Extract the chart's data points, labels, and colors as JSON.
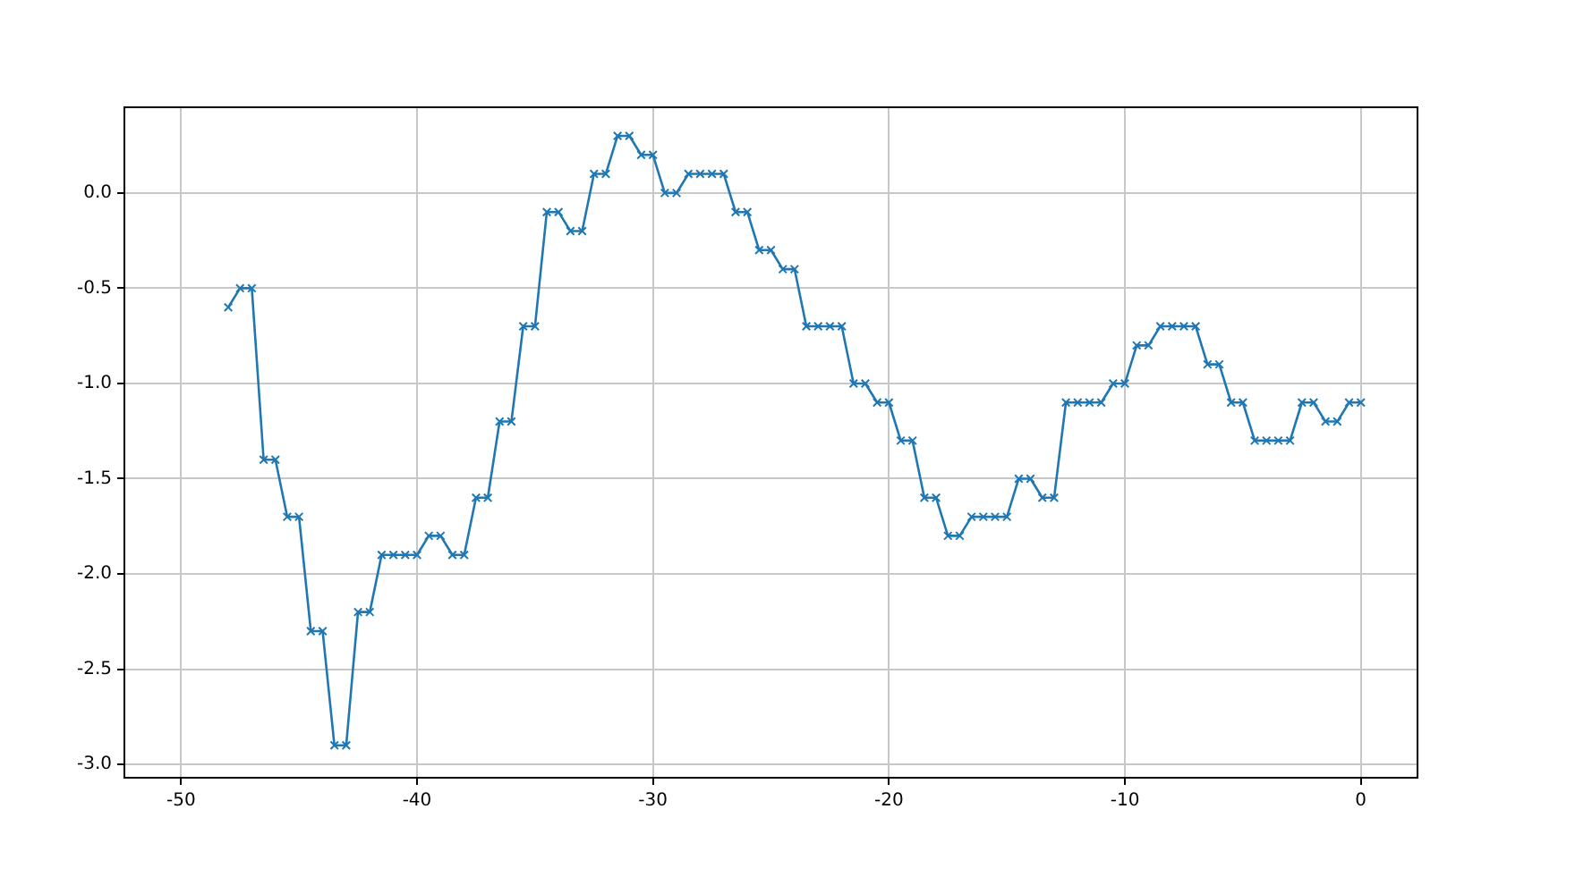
{
  "chart_data": {
    "type": "line",
    "x": [
      -48,
      -47.5,
      -47,
      -46.5,
      -46,
      -45.5,
      -45,
      -44.5,
      -44,
      -43.5,
      -43,
      -42.5,
      -42,
      -41.5,
      -41,
      -40.5,
      -40,
      -39.5,
      -39,
      -38.5,
      -38,
      -37.5,
      -37,
      -36.5,
      -36,
      -35.5,
      -35,
      -34.5,
      -34,
      -33.5,
      -33,
      -32.5,
      -32,
      -31.5,
      -31,
      -30.5,
      -30,
      -29.5,
      -29,
      -28.5,
      -28,
      -27.5,
      -27,
      -26.5,
      -26,
      -25.5,
      -25,
      -24.5,
      -24,
      -23.5,
      -23,
      -22.5,
      -22,
      -21.5,
      -21,
      -20.5,
      -20,
      -19.5,
      -19,
      -18.5,
      -18,
      -17.5,
      -17,
      -16.5,
      -16,
      -15.5,
      -15,
      -14.5,
      -14,
      -13.5,
      -13,
      -12.5,
      -12,
      -11.5,
      -11,
      -10.5,
      -10,
      -9.5,
      -9,
      -8.5,
      -8,
      -7.5,
      -7,
      -6.5,
      -6,
      -5.5,
      -5,
      -4.5,
      -4,
      -3.5,
      -3,
      -2.5,
      -2,
      -1.5,
      -1,
      -0.5,
      0
    ],
    "series": [
      {
        "color": "#1f77b4",
        "values": [
          -0.6,
          -0.5,
          -0.5,
          -1.4,
          -1.4,
          -1.7,
          -1.7,
          -2.3,
          -2.3,
          -2.9,
          -2.9,
          -2.2,
          -2.2,
          -1.9,
          -1.9,
          -1.9,
          -1.9,
          -1.8,
          -1.8,
          -1.9,
          -1.9,
          -1.6,
          -1.6,
          -1.2,
          -1.2,
          -0.7,
          -0.7,
          -0.1,
          -0.1,
          -0.2,
          -0.2,
          0.1,
          0.1,
          0.3,
          0.3,
          0.2,
          0.2,
          0.0,
          0.0,
          0.1,
          0.1,
          0.1,
          0.1,
          -0.1,
          -0.1,
          -0.3,
          -0.3,
          -0.4,
          -0.4,
          -0.7,
          -0.7,
          -0.7,
          -0.7,
          -1.0,
          -1.0,
          -1.1,
          -1.1,
          -1.3,
          -1.3,
          -1.6,
          -1.6,
          -1.8,
          -1.8,
          -1.7,
          -1.7,
          -1.7,
          -1.7,
          -1.5,
          -1.5,
          -1.6,
          -1.6,
          -1.1,
          -1.1,
          -1.1,
          -1.1,
          -1.0,
          -1.0,
          -0.8,
          -0.8,
          -0.7,
          -0.7,
          -0.7,
          -0.7,
          -0.9,
          -0.9,
          -1.1,
          -1.1,
          -1.3,
          -1.3,
          -1.3,
          -1.3,
          -1.1,
          -1.1,
          -1.2,
          -1.2,
          -1.1,
          -1.1
        ]
      }
    ],
    "xlim": [
      -52.4,
      2.4
    ],
    "ylim": [
      -3.07,
      0.45
    ],
    "xticks": [
      -50,
      -40,
      -30,
      -20,
      -10,
      0
    ],
    "yticks": [
      {
        "value": -3,
        "label": "-3.0"
      },
      {
        "value": -2.5,
        "label": "-2.5"
      },
      {
        "value": -2,
        "label": "-2.0"
      },
      {
        "value": -1.5,
        "label": "-1.5"
      },
      {
        "value": -1,
        "label": "-1.0"
      },
      {
        "value": -0.5,
        "label": "-0.5"
      },
      {
        "value": 0,
        "label": "0.0"
      }
    ],
    "grid": true,
    "marker": "cross",
    "line_style": "solid",
    "legend": false
  }
}
